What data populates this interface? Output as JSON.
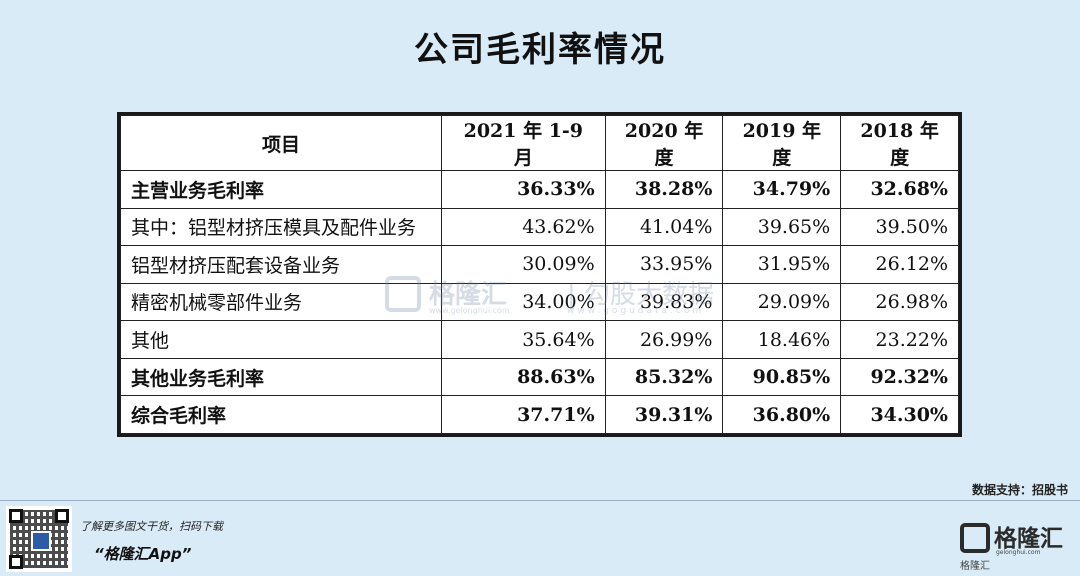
{
  "title": "公司毛利率情况",
  "chart_data": {
    "type": "table",
    "columns": [
      "项目",
      "2021 年 1-9 月",
      "2020 年度",
      "2019 年度",
      "2018 年度"
    ],
    "rows": [
      {
        "name": "主营业务毛利率",
        "values": [
          "36.33%",
          "38.28%",
          "34.79%",
          "32.68%"
        ],
        "bold": true
      },
      {
        "name": "其中：铝型材挤压模具及配件业务",
        "values": [
          "43.62%",
          "41.04%",
          "39.65%",
          "39.50%"
        ],
        "bold": false
      },
      {
        "name": "铝型材挤压配套设备业务",
        "values": [
          "30.09%",
          "33.95%",
          "31.95%",
          "26.12%"
        ],
        "bold": false
      },
      {
        "name": "精密机械零部件业务",
        "values": [
          "34.00%",
          "39.83%",
          "29.09%",
          "26.98%"
        ],
        "bold": false
      },
      {
        "name": "其他",
        "values": [
          "35.64%",
          "26.99%",
          "18.46%",
          "23.22%"
        ],
        "bold": false
      },
      {
        "name": "其他业务毛利率",
        "values": [
          "88.63%",
          "85.32%",
          "90.85%",
          "92.32%"
        ],
        "bold": true
      },
      {
        "name": "综合毛利率",
        "values": [
          "37.71%",
          "39.31%",
          "36.80%",
          "34.30%"
        ],
        "bold": true
      }
    ]
  },
  "watermark": {
    "brand": "格隆汇",
    "brand_url": "www.gelonghui.com",
    "data": "| 勾股大数据",
    "data_url": "www.gogudata.com"
  },
  "source": "数据支持：招股书",
  "footer": {
    "promo_line": "了解更多图文干货，扫码下载",
    "app_name": "“格隆汇App”",
    "brand_name": "格隆汇",
    "brand_url": "gelonghui.com",
    "brand_caption": "格隆汇"
  }
}
